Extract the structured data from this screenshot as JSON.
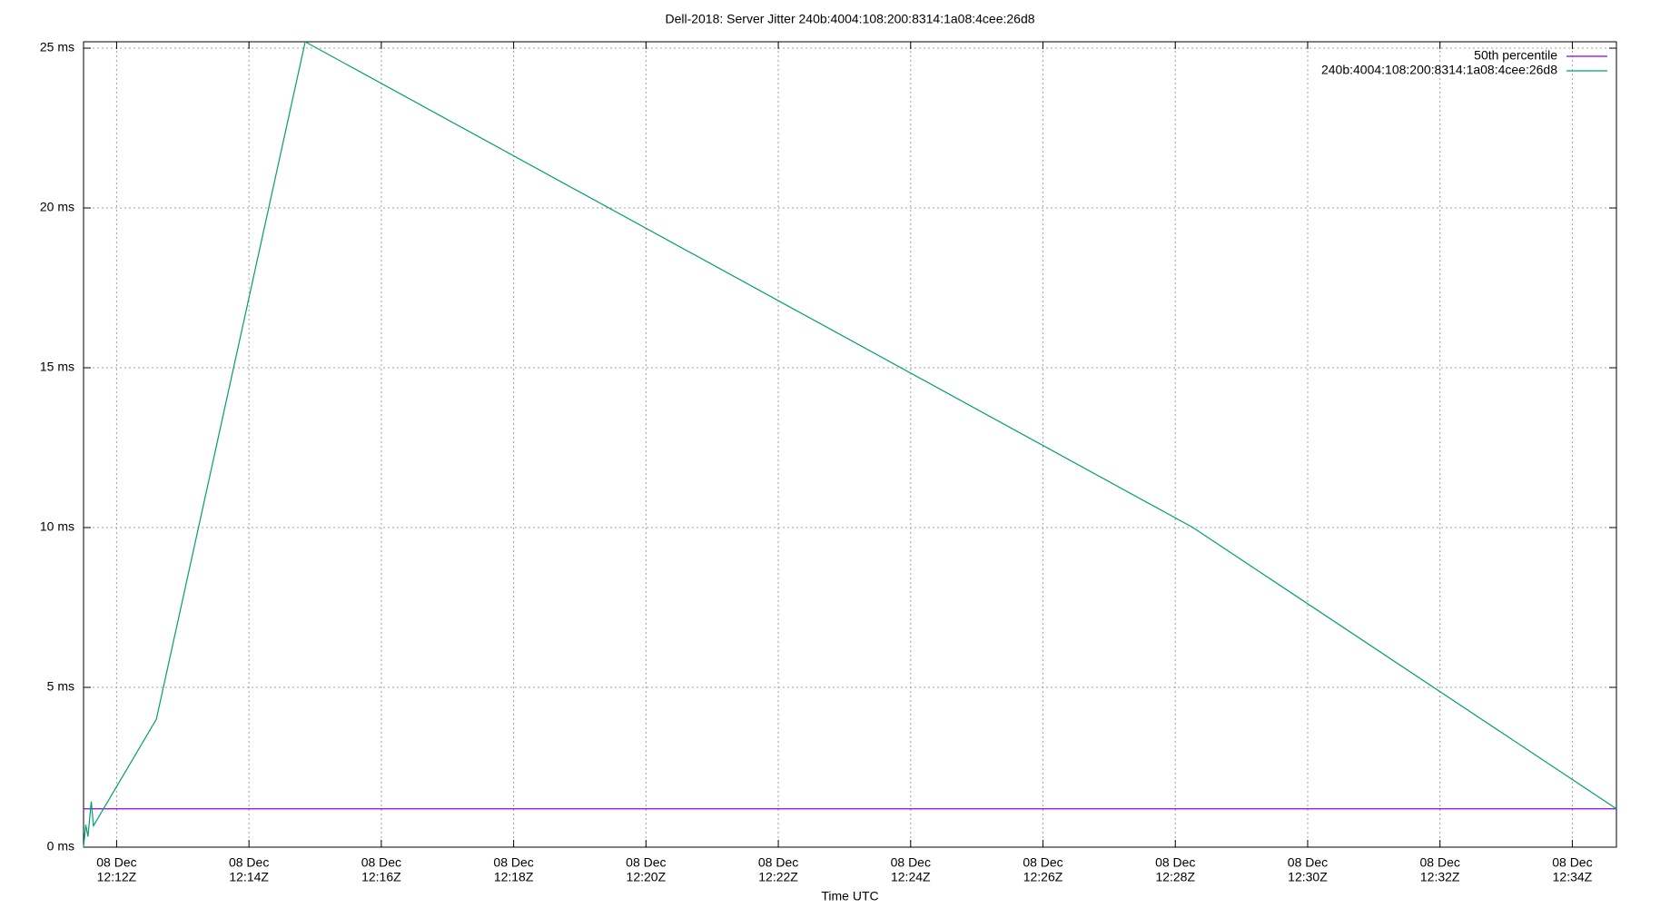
{
  "chart_data": {
    "type": "line",
    "title": "Dell-2018: Server Jitter 240b:4004:108:200:8314:1a08:4cee:26d8",
    "xlabel": "Time UTC",
    "xlim": [
      "12:11:30",
      "12:34:40"
    ],
    "xticks": [
      {
        "value": "12:12",
        "label": [
          "08 Dec",
          "12:12Z"
        ]
      },
      {
        "value": "12:14",
        "label": [
          "08 Dec",
          "12:14Z"
        ]
      },
      {
        "value": "12:16",
        "label": [
          "08 Dec",
          "12:16Z"
        ]
      },
      {
        "value": "12:18",
        "label": [
          "08 Dec",
          "12:18Z"
        ]
      },
      {
        "value": "12:20",
        "label": [
          "08 Dec",
          "12:20Z"
        ]
      },
      {
        "value": "12:22",
        "label": [
          "08 Dec",
          "12:22Z"
        ]
      },
      {
        "value": "12:24",
        "label": [
          "08 Dec",
          "12:24Z"
        ]
      },
      {
        "value": "12:26",
        "label": [
          "08 Dec",
          "12:26Z"
        ]
      },
      {
        "value": "12:28",
        "label": [
          "08 Dec",
          "12:28Z"
        ]
      },
      {
        "value": "12:30",
        "label": [
          "08 Dec",
          "12:30Z"
        ]
      },
      {
        "value": "12:32",
        "label": [
          "08 Dec",
          "12:32Z"
        ]
      },
      {
        "value": "12:34",
        "label": [
          "08 Dec",
          "12:34Z"
        ]
      }
    ],
    "ylim": [
      0,
      25.2
    ],
    "yticks": [
      {
        "value": 0,
        "label": "0 ms"
      },
      {
        "value": 5,
        "label": "5 ms"
      },
      {
        "value": 10,
        "label": "10 ms"
      },
      {
        "value": 15,
        "label": "15 ms"
      },
      {
        "value": 20,
        "label": "20 ms"
      },
      {
        "value": 25,
        "label": "25 ms"
      }
    ],
    "grid": true,
    "legend": "top-right",
    "series": [
      {
        "name": "50th percentile",
        "color": "#9400d3",
        "x": [
          "12:11:30",
          "12:34:40"
        ],
        "values": [
          1.2,
          1.2
        ]
      },
      {
        "name": "240b:4004:108:200:8314:1a08:4cee:26d8",
        "color": "#009e73",
        "x": [
          "12:11:30",
          "12:11:32",
          "12:11:34",
          "12:11:37",
          "12:11:39",
          "12:12:36",
          "12:14:51",
          "12:28:16",
          "12:34:40"
        ],
        "values": [
          0,
          0.7,
          0.33,
          1.43,
          0.67,
          4.0,
          25.2,
          10.0,
          1.2
        ]
      }
    ]
  }
}
